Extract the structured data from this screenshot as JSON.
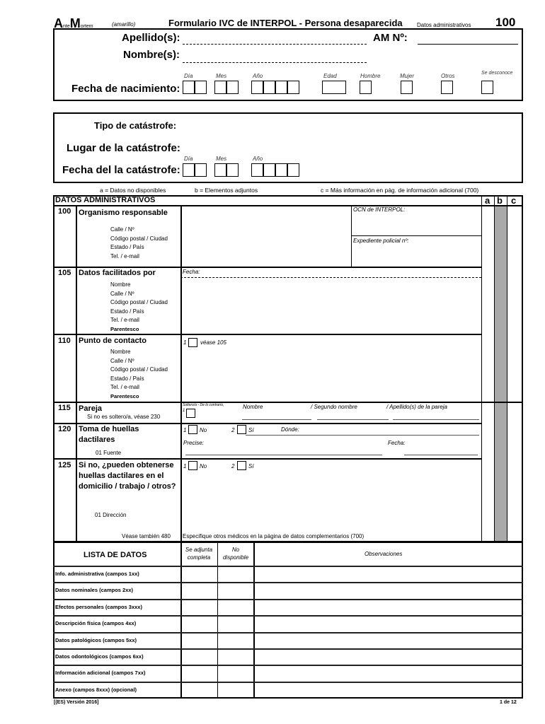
{
  "header": {
    "logo": "AnteMortem",
    "logo_a": "A",
    "logo_nte": "nte",
    "logo_m": "M",
    "logo_ortem": "ortem",
    "color": "(amarillo)",
    "title": "Formulario IVC de INTERPOL - Persona desaparecida",
    "section": "Datos administrativos",
    "page_code": "100"
  },
  "person": {
    "surname_label": "Apellido(s):",
    "am_label": "AM Nº:",
    "name_label": "Nombre(s):",
    "dob_label": "Fecha de nacimiento:",
    "day": "Día",
    "month": "Mes",
    "year": "Año",
    "age": "Edad",
    "male": "Hombre",
    "female": "Mujer",
    "other": "Otros",
    "unknown": "Se desconoce"
  },
  "disaster": {
    "type_label": "Tipo de catástrofe:",
    "place_label": "Lugar de la catástrofe:",
    "date_label": "Fecha del la catástrofe:",
    "day": "Día",
    "month": "Mes",
    "year": "Año"
  },
  "legend": {
    "a": "a = Datos no disponibles",
    "b": "b = Elementos adjuntos",
    "c": "c = Más información en pág. de información adicional (700)"
  },
  "admin": {
    "title": "DATOS ADMINISTRATIVOS",
    "col_a": "a",
    "col_b": "b",
    "col_c": "c",
    "f100": {
      "num": "100",
      "label": "Organismo responsable",
      "sub": [
        "Calle / Nº",
        "Código postal / Ciudad",
        "Estado / País",
        "Tel. / e-mail"
      ],
      "ocn": "OCN de INTERPOL:",
      "exp": "Expediente policial nº:"
    },
    "f105": {
      "num": "105",
      "label": "Datos facilitados por",
      "sub": [
        "Nombre",
        "Calle / Nº",
        "Código postal / Ciudad",
        "Estado / País",
        "Tel. / e-mail"
      ],
      "rel": "Parentesco",
      "date": "Fecha:"
    },
    "f110": {
      "num": "110",
      "label": "Punto de contacto",
      "sub": [
        "Nombre",
        "Calle / Nº",
        "Código postal / Ciudad",
        "Estado / País",
        "Tel. / e-mail"
      ],
      "rel": "Parentesco",
      "opt1": "1",
      "see": "véase 105"
    },
    "f115": {
      "num": "115",
      "label": "Pareja",
      "note": "Si no es soltero/a, véase 230",
      "single": "Soltero/a - De lo contrario,",
      "opt1": "1",
      "name": "Nombre",
      "second": "/ Segundo nombre",
      "surname": "/ Apellido(s) de la pareja"
    },
    "f120": {
      "num": "120",
      "label": "Toma de huellas dactilares",
      "n1": "1",
      "no": "No",
      "n2": "2",
      "yes": "Sí",
      "where": "Dónde:",
      "specify": "Precise:",
      "date": "Fecha:",
      "source": "01 Fuente"
    },
    "f125": {
      "num": "125",
      "label": "Si no, ¿pueden obtenerse huellas dactilares en el domicilio / trabajo / otros?",
      "n1": "1",
      "no": "No",
      "n2": "2",
      "yes": "Sí",
      "address": "01 Dirección",
      "see": "Véase también 480",
      "specify": "Especifique otros médicos en la página de datos complementarios (700)"
    }
  },
  "list": {
    "title": "LISTA DE DATOS",
    "col1": "Se adjunta completa",
    "col2": "No disponible",
    "col3": "Observaciones",
    "rows": [
      "Info. administrativa (campos 1xx)",
      "Datos nominales (campos 2xx)",
      "Efectos personales (campos 3xxx)",
      "Descripción física (campos 4xx)",
      "Datos patológicos (campos 5xx)",
      "Datos odontológicos (campos 6xx)",
      "Información adicional (campos 7xx)",
      "Anexo (campos 8xxx) (opcional)"
    ]
  },
  "footer": {
    "version": "[(ES) Versión 2016]",
    "page": "1 de 12"
  },
  "colors": {
    "grey_column": "#a9a9a9"
  }
}
